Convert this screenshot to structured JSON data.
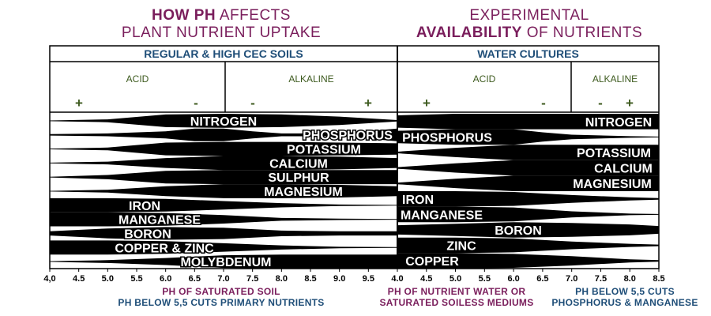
{
  "titles": {
    "left": {
      "line1_bold": "HOW PH",
      "line1_rest": " AFFECTS",
      "line2": "PLANT NUTRIENT UPTAKE"
    },
    "right": {
      "line1": "EXPERIMENTAL",
      "line2_bold": "AVAILABILITY",
      "line2_rest": " OF NUTRIENTS"
    }
  },
  "colors": {
    "purple": "#7a1e5c",
    "navy": "#1f4e78",
    "band": "#000000",
    "acid_alkaline": "#3d5a1e"
  },
  "chart_data": [
    {
      "type": "area",
      "panel": "left",
      "header": "REGULAR & HIGH CEC SOILS",
      "zone_labels": [
        "ACID",
        "ALKALINE"
      ],
      "signs": [
        "+",
        "-",
        "-",
        "+"
      ],
      "x_ticks": [
        "4,0",
        "4.5",
        "5.0",
        "5.5",
        "6.0",
        "6.5",
        "7.0",
        "7.5",
        "8.0",
        "8.5",
        "9.0",
        "9.5"
      ],
      "xlim": [
        4.0,
        10.0
      ],
      "footer": [
        "PH OF SATURATED SOIL",
        "PH BELOW 5,5 CUTS PRIMARY NUTRIENTS"
      ],
      "series": [
        {
          "name": "NITROGEN",
          "x": [
            4.0,
            5.0,
            6.0,
            7.0,
            8.0,
            9.0,
            10.0
          ],
          "values": [
            0.5,
            2,
            9,
            10,
            9,
            6,
            1
          ]
        },
        {
          "name": "PHOSPHORUS",
          "x": [
            4.0,
            5.0,
            6.0,
            6.5,
            7.0,
            7.5,
            8.0,
            9.0,
            10.0
          ],
          "values": [
            1,
            2,
            5,
            9,
            9,
            5,
            2,
            2,
            9
          ]
        },
        {
          "name": "POTASSIUM",
          "x": [
            4.0,
            5.0,
            6.0,
            7.0,
            8.0,
            9.0,
            10.0
          ],
          "values": [
            0.5,
            2,
            9,
            10,
            10,
            9,
            8
          ]
        },
        {
          "name": "CALCIUM",
          "x": [
            4.0,
            5.0,
            6.0,
            7.0,
            8.0,
            9.0,
            10.0
          ],
          "values": [
            0.5,
            2,
            7,
            10,
            10,
            9,
            7
          ]
        },
        {
          "name": "SULPHUR",
          "x": [
            4.0,
            5.0,
            6.0,
            7.0,
            8.0,
            9.0,
            10.0
          ],
          "values": [
            0.5,
            3,
            9,
            10,
            10,
            10,
            10
          ]
        },
        {
          "name": "MAGNESIUM",
          "x": [
            4.0,
            5.0,
            6.0,
            7.0,
            8.0,
            9.0,
            10.0
          ],
          "values": [
            0.5,
            2,
            7,
            10,
            10,
            9,
            7
          ]
        },
        {
          "name": "IRON",
          "x": [
            4.0,
            5.0,
            6.0,
            7.0,
            8.0,
            9.0,
            10.0
          ],
          "values": [
            10,
            10,
            9,
            6,
            3,
            1,
            0.5
          ]
        },
        {
          "name": "MANGANESE",
          "x": [
            4.0,
            5.0,
            6.0,
            7.0,
            8.0,
            9.0,
            10.0
          ],
          "values": [
            10,
            10,
            9,
            6,
            2,
            1,
            0.5
          ]
        },
        {
          "name": "BORON",
          "x": [
            4.0,
            5.0,
            6.0,
            7.0,
            8.0,
            9.0,
            10.0
          ],
          "values": [
            3,
            7,
            9,
            8,
            4,
            3,
            3
          ]
        },
        {
          "name": "COPPER & ZINC",
          "x": [
            4.0,
            5.0,
            6.0,
            7.0,
            8.0,
            9.0,
            10.0
          ],
          "values": [
            10,
            10,
            9,
            6,
            3,
            1,
            0.5
          ]
        },
        {
          "name": "MOLYBDENUM",
          "x": [
            4.0,
            5.0,
            6.0,
            7.0,
            8.0,
            9.0,
            10.0
          ],
          "values": [
            0.5,
            2,
            5,
            9,
            10,
            10,
            10
          ]
        }
      ]
    },
    {
      "type": "area",
      "panel": "right",
      "header": "WATER CULTURES",
      "zone_labels": [
        "ACID",
        "ALKALINE"
      ],
      "signs": [
        "+",
        "-",
        "-",
        "+"
      ],
      "x_ticks": [
        "4.0",
        "4.5",
        "5.0",
        "5.5",
        "6.0",
        "6.5",
        "7.0",
        "7.5",
        "8.0",
        "8.5"
      ],
      "xlim": [
        4.0,
        8.5
      ],
      "footer_left": [
        "PH OF NUTRIENT WATER OR",
        "SATURATED SOILESS MEDIUMS"
      ],
      "footer_right": [
        "PH BELOW 5,5 CUTS",
        "PHOSPHORUS & MANGANESE"
      ],
      "series": [
        {
          "name": "NITROGEN",
          "x": [
            4.0,
            5.0,
            6.0,
            7.0,
            8.0,
            8.5
          ],
          "values": [
            8,
            10,
            10,
            10,
            10,
            10
          ]
        },
        {
          "name": "PHOSPHORUS",
          "x": [
            4.0,
            5.0,
            6.0,
            6.5,
            7.0,
            8.0,
            8.5
          ],
          "values": [
            8,
            10,
            10,
            6,
            3,
            1,
            0.5
          ]
        },
        {
          "name": "POTASSIUM",
          "x": [
            4.0,
            5.0,
            6.0,
            7.0,
            8.0,
            8.5
          ],
          "values": [
            1,
            6,
            10,
            10,
            10,
            10
          ]
        },
        {
          "name": "CALCIUM",
          "x": [
            4.0,
            5.0,
            6.0,
            7.0,
            8.0,
            8.5
          ],
          "values": [
            1,
            6,
            10,
            10,
            10,
            10
          ]
        },
        {
          "name": "MAGNESIUM",
          "x": [
            4.0,
            5.0,
            6.0,
            7.0,
            8.0,
            8.5
          ],
          "values": [
            1,
            6,
            10,
            10,
            10,
            10
          ]
        },
        {
          "name": "IRON",
          "x": [
            4.0,
            5.0,
            6.0,
            7.0,
            8.0,
            8.5
          ],
          "values": [
            10,
            10,
            9,
            5,
            2,
            1
          ]
        },
        {
          "name": "MANGANESE",
          "x": [
            4.0,
            5.0,
            6.0,
            7.0,
            8.0,
            8.5
          ],
          "values": [
            10,
            10,
            9,
            4,
            1,
            0.5
          ]
        },
        {
          "name": "BORON",
          "x": [
            4.0,
            5.0,
            6.0,
            7.0,
            8.0,
            8.5
          ],
          "values": [
            6,
            8,
            10,
            9,
            7,
            5
          ]
        },
        {
          "name": "ZINC",
          "x": [
            4.0,
            5.0,
            6.0,
            7.0,
            8.0,
            8.5
          ],
          "values": [
            10,
            10,
            9,
            5,
            2,
            1
          ]
        },
        {
          "name": "COPPER",
          "x": [
            4.0,
            5.0,
            6.0,
            7.0,
            8.0,
            8.5
          ],
          "values": [
            10,
            10,
            9,
            6,
            2,
            1
          ]
        }
      ]
    }
  ]
}
